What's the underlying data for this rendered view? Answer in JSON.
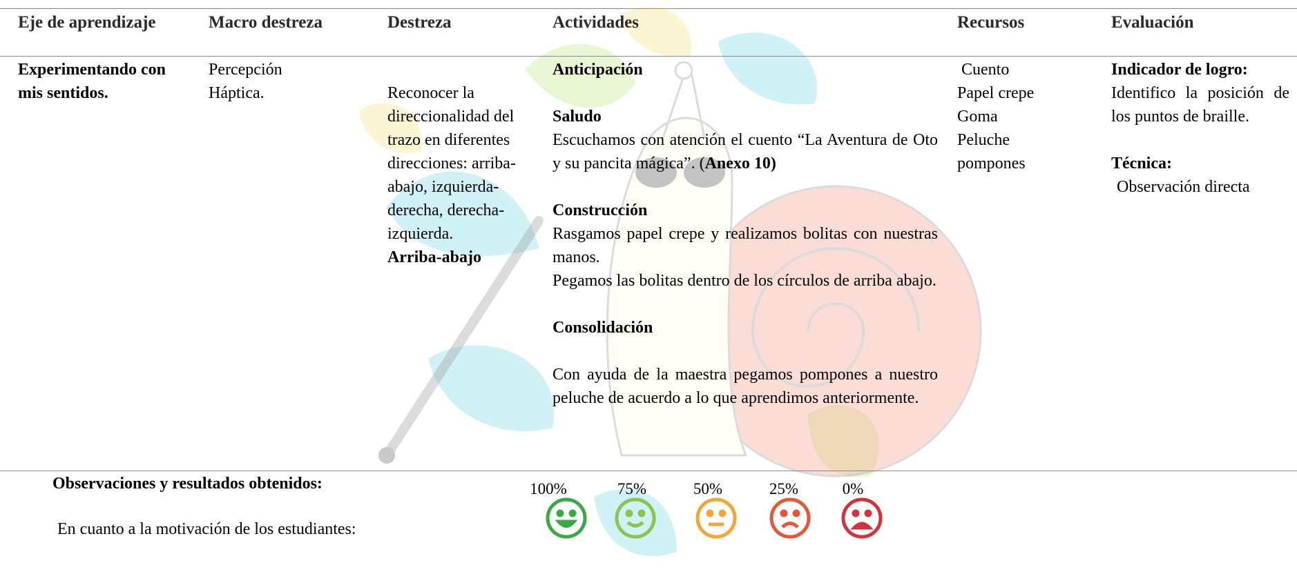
{
  "table": {
    "headers": [
      "Eje de aprendizaje",
      "Macro destreza",
      "Destreza",
      "Actividades",
      "Recursos",
      "Evaluación"
    ],
    "row": {
      "eje": "Experimentando con mis sentidos.",
      "macro": [
        "Percepción",
        "Háptica."
      ],
      "destreza": {
        "text": "Reconocer la direccionalidad del trazo en diferentes direcciones: arriba-abajo, izquierda-derecha, derecha-izquierda.",
        "focus": "Arriba-abajo"
      },
      "actividades": {
        "anticipacion": "Anticipación",
        "saludo": {
          "title": "Saludo",
          "text": "Escuchamos con atención el cuento “La Aventura de Oto y su pancita mágica”. (",
          "annex": "Anexo 10)"
        },
        "construccion": {
          "title": "Construcción",
          "steps": [
            "Rasgamos papel crepe y realizamos bolitas con nuestras manos.",
            "Pegamos las bolitas dentro de los círculos de arriba abajo."
          ]
        },
        "consolidacion": {
          "title": "Consolidación",
          "text": "Con ayuda de la maestra pegamos pompones a nuestro peluche de acuerdo a lo que aprendimos anteriormente."
        }
      },
      "recursos": [
        "Cuento",
        "Papel crepe",
        "Goma",
        "Peluche",
        "pompones"
      ],
      "evaluacion": {
        "indicator_title": "Indicador de logro:",
        "indicator": "Identifico la posición de los puntos de braille.",
        "technique_title": "Técnica:",
        "technique": "Observación directa"
      }
    }
  },
  "observations": {
    "title": "Observaciones y resultados obtenidos:",
    "motivation": "En cuanto a la motivación de los estudiantes:",
    "scale": [
      "100%",
      "75%",
      "50%",
      "25%",
      "0%"
    ]
  }
}
